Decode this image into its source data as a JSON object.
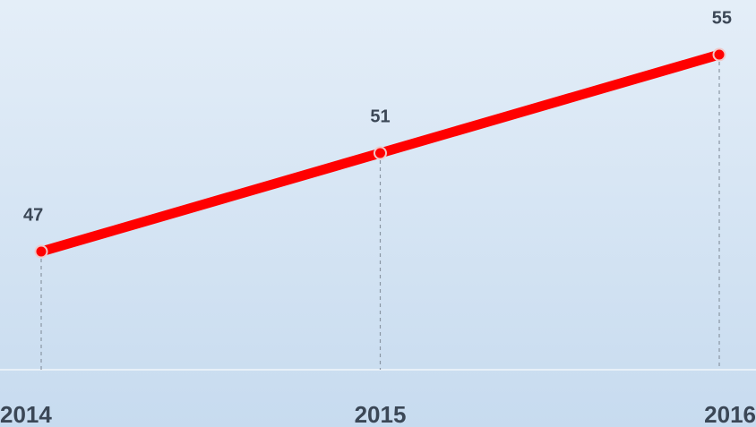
{
  "chart_data": {
    "type": "line",
    "categories": [
      "2014",
      "2015",
      "2016"
    ],
    "values": [
      47,
      51,
      55
    ],
    "color": "#ff0000"
  }
}
